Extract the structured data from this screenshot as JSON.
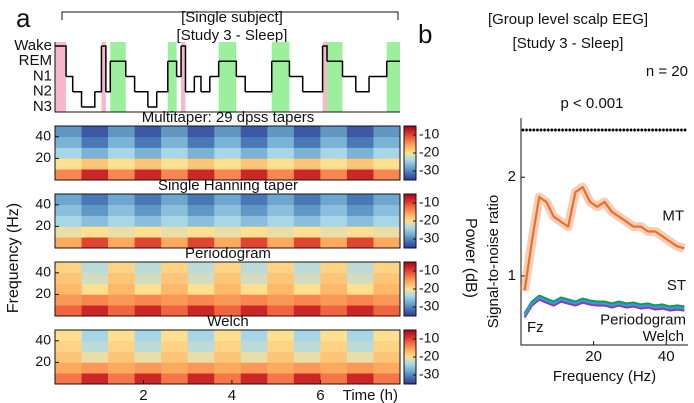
{
  "panel_labels": [
    "a",
    "b"
  ],
  "shared_labels": {
    "ylabel": "Frequency (Hz)",
    "colorbar_label": "Power (dB)",
    "xlabel": "Time (h)"
  },
  "chart_data": [
    {
      "type": "hypnogram",
      "title": "[Single subject]",
      "subtitle": "[Study 3 - Sleep]",
      "stages": [
        "Wake",
        "REM",
        "N1",
        "N2",
        "N3"
      ],
      "stage_label_colors": [
        "#f4a6bd",
        "#8fe88f",
        "#111111",
        "#111111",
        "#111111"
      ],
      "shade_colors": {
        "Wake": "#f7b8c9",
        "REM": "#9cef9c"
      },
      "xlim": [
        0,
        7.8
      ],
      "x": [
        0,
        0.25,
        0.4,
        0.6,
        0.9,
        1.05,
        1.15,
        1.25,
        1.6,
        1.8,
        2.1,
        2.3,
        2.55,
        2.75,
        2.85,
        2.95,
        3.15,
        3.3,
        3.5,
        3.7,
        4.1,
        4.3,
        4.9,
        5.3,
        5.6,
        6.05,
        6.15,
        6.5,
        6.8,
        7.1,
        7.5
      ],
      "values": [
        "Wake",
        "N1",
        "N2",
        "N3",
        "N2",
        "Wake",
        "N2",
        "REM",
        "N1",
        "N2",
        "N3",
        "N2",
        "REM",
        "N1",
        "Wake",
        "N2",
        "N1",
        "N2",
        "N1",
        "REM",
        "N1",
        "N2",
        "REM",
        "N1",
        "N2",
        "Wake",
        "REM",
        "N1",
        "N2",
        "N1",
        "REM"
      ]
    },
    {
      "type": "heatmap",
      "title": "Multitaper: 29 dpss tapers",
      "title_color": "#e8702a",
      "xlim": [
        0,
        7.8
      ],
      "ylim": [
        0,
        50
      ],
      "yticks": [
        20,
        40
      ],
      "clim": [
        -35,
        -5
      ],
      "cticks": [
        -10,
        -20,
        -30
      ],
      "x_edges": [
        0,
        0.6,
        1.2,
        1.8,
        2.4,
        3.0,
        3.6,
        4.2,
        4.8,
        5.4,
        6.0,
        6.6,
        7.2,
        7.8
      ],
      "y_edges": [
        0,
        10,
        20,
        30,
        40,
        50
      ],
      "z": [
        [
          -14,
          -8,
          -14,
          -8,
          -14,
          -8,
          -14,
          -8,
          -14,
          -8,
          -14,
          -8,
          -14
        ],
        [
          -20,
          -18,
          -20,
          -18,
          -20,
          -18,
          -20,
          -18,
          -20,
          -18,
          -20,
          -18,
          -20
        ],
        [
          -24,
          -27,
          -24,
          -27,
          -24,
          -27,
          -24,
          -27,
          -24,
          -27,
          -24,
          -27,
          -24
        ],
        [
          -27,
          -31,
          -27,
          -31,
          -27,
          -31,
          -27,
          -31,
          -27,
          -31,
          -27,
          -31,
          -27
        ],
        [
          -29,
          -33,
          -29,
          -33,
          -29,
          -33,
          -29,
          -33,
          -29,
          -33,
          -29,
          -33,
          -29
        ]
      ]
    },
    {
      "type": "heatmap",
      "title": "Single Hanning taper",
      "title_color": "#2e7fc0",
      "xlim": [
        0,
        7.8
      ],
      "ylim": [
        0,
        50
      ],
      "yticks": [
        20,
        40
      ],
      "clim": [
        -35,
        -5
      ],
      "cticks": [
        -10,
        -20,
        -30
      ],
      "x_edges": [
        0,
        0.6,
        1.2,
        1.8,
        2.4,
        3.0,
        3.6,
        4.2,
        4.8,
        5.4,
        6.0,
        6.6,
        7.2,
        7.8
      ],
      "y_edges": [
        0,
        10,
        20,
        30,
        40,
        50
      ],
      "z": [
        [
          -16,
          -10,
          -16,
          -10,
          -16,
          -10,
          -16,
          -10,
          -16,
          -10,
          -16,
          -10,
          -16
        ],
        [
          -21,
          -20,
          -21,
          -20,
          -21,
          -20,
          -21,
          -20,
          -21,
          -20,
          -21,
          -20,
          -21
        ],
        [
          -24,
          -26,
          -24,
          -26,
          -24,
          -26,
          -24,
          -26,
          -24,
          -26,
          -24,
          -26,
          -24
        ],
        [
          -26,
          -29,
          -26,
          -29,
          -26,
          -29,
          -26,
          -29,
          -26,
          -29,
          -26,
          -29,
          -26
        ],
        [
          -28,
          -31,
          -28,
          -31,
          -28,
          -31,
          -28,
          -31,
          -28,
          -31,
          -28,
          -31,
          -28
        ]
      ]
    },
    {
      "type": "heatmap",
      "title": "Periodogram",
      "title_color": "#1a9850",
      "xlim": [
        0,
        7.8
      ],
      "ylim": [
        0,
        50
      ],
      "yticks": [
        20,
        40
      ],
      "clim": [
        -35,
        -5
      ],
      "cticks": [
        -10,
        -20,
        -30
      ],
      "x_edges": [
        0,
        0.6,
        1.2,
        1.8,
        2.4,
        3.0,
        3.6,
        4.2,
        4.8,
        5.4,
        6.0,
        6.6,
        7.2,
        7.8
      ],
      "y_edges": [
        0,
        10,
        20,
        30,
        40,
        50
      ],
      "z": [
        [
          -12,
          -8,
          -12,
          -8,
          -12,
          -8,
          -12,
          -8,
          -12,
          -8,
          -12,
          -8,
          -12
        ],
        [
          -15,
          -14,
          -15,
          -14,
          -15,
          -14,
          -15,
          -14,
          -15,
          -14,
          -15,
          -14,
          -15
        ],
        [
          -17,
          -20,
          -17,
          -20,
          -17,
          -20,
          -17,
          -20,
          -17,
          -20,
          -17,
          -20,
          -17
        ],
        [
          -18,
          -22,
          -18,
          -22,
          -18,
          -22,
          -18,
          -22,
          -18,
          -22,
          -18,
          -22,
          -18
        ],
        [
          -19,
          -23,
          -19,
          -23,
          -19,
          -23,
          -19,
          -23,
          -19,
          -23,
          -19,
          -23,
          -19
        ]
      ]
    },
    {
      "type": "heatmap",
      "title": "Welch",
      "title_color": "#9b30b8",
      "xlim": [
        0,
        7.8
      ],
      "ylim": [
        0,
        50
      ],
      "yticks": [
        20,
        40
      ],
      "clim": [
        -35,
        -5
      ],
      "cticks": [
        -10,
        -20,
        -30
      ],
      "xticks": [
        2,
        4,
        6
      ],
      "x_edges": [
        0,
        0.6,
        1.2,
        1.8,
        2.4,
        3.0,
        3.6,
        4.2,
        4.8,
        5.4,
        6.0,
        6.6,
        7.2,
        7.8
      ],
      "y_edges": [
        0,
        10,
        20,
        30,
        40,
        50
      ],
      "z": [
        [
          -13,
          -8,
          -13,
          -8,
          -13,
          -8,
          -13,
          -8,
          -13,
          -8,
          -13,
          -8,
          -13
        ],
        [
          -16,
          -15,
          -16,
          -15,
          -16,
          -15,
          -16,
          -15,
          -16,
          -15,
          -16,
          -15,
          -16
        ],
        [
          -18,
          -21,
          -18,
          -21,
          -18,
          -21,
          -18,
          -21,
          -18,
          -21,
          -18,
          -21,
          -18
        ],
        [
          -19,
          -23,
          -19,
          -23,
          -19,
          -23,
          -19,
          -23,
          -19,
          -23,
          -19,
          -23,
          -19
        ],
        [
          -20,
          -24,
          -20,
          -24,
          -20,
          -24,
          -20,
          -24,
          -20,
          -24,
          -20,
          -24,
          -20
        ]
      ]
    },
    {
      "type": "line",
      "title": "[Group level scalp EEG]",
      "subtitle": "[Study 3 - Sleep]",
      "annotations": [
        "n = 20",
        "p < 0.001",
        "Fz"
      ],
      "xlabel": "Frequency (Hz)",
      "ylabel": "Signal-to-noise ratio",
      "xlim": [
        0,
        46
      ],
      "ylim": [
        0.3,
        2.6
      ],
      "xticks": [
        20,
        40
      ],
      "yticks": [
        1,
        2
      ],
      "x": [
        1,
        3,
        5,
        7,
        9,
        11,
        13,
        15,
        17,
        19,
        21,
        23,
        25,
        27,
        29,
        31,
        33,
        35,
        37,
        39,
        41,
        43,
        45
      ],
      "series": [
        {
          "name": "MT",
          "color": "#e8702a",
          "values": [
            0.85,
            1.35,
            1.8,
            1.75,
            1.6,
            1.55,
            1.5,
            1.85,
            1.9,
            1.75,
            1.7,
            1.75,
            1.65,
            1.6,
            1.55,
            1.5,
            1.5,
            1.45,
            1.45,
            1.4,
            1.35,
            1.3,
            1.28
          ]
        },
        {
          "name": "ST",
          "color": "#2ba0d8",
          "values": [
            0.6,
            0.72,
            0.78,
            0.75,
            0.72,
            0.76,
            0.74,
            0.72,
            0.75,
            0.73,
            0.72,
            0.72,
            0.7,
            0.72,
            0.7,
            0.71,
            0.69,
            0.7,
            0.68,
            0.69,
            0.67,
            0.68,
            0.67
          ]
        },
        {
          "name": "Periodogram",
          "color": "#1a9850",
          "values": [
            0.62,
            0.74,
            0.8,
            0.77,
            0.74,
            0.78,
            0.76,
            0.74,
            0.77,
            0.75,
            0.74,
            0.74,
            0.72,
            0.74,
            0.72,
            0.73,
            0.71,
            0.72,
            0.7,
            0.71,
            0.69,
            0.7,
            0.69
          ]
        },
        {
          "name": "Welch",
          "color": "#9b30b8",
          "values": [
            0.58,
            0.7,
            0.76,
            0.73,
            0.7,
            0.74,
            0.72,
            0.7,
            0.73,
            0.71,
            0.7,
            0.7,
            0.68,
            0.7,
            0.68,
            0.69,
            0.67,
            0.68,
            0.66,
            0.67,
            0.65,
            0.66,
            0.65
          ]
        }
      ]
    }
  ],
  "colormap": [
    "#313695",
    "#4575b4",
    "#74add1",
    "#abd9e9",
    "#fee090",
    "#fdae61",
    "#f46d43",
    "#d73027",
    "#a50026"
  ]
}
